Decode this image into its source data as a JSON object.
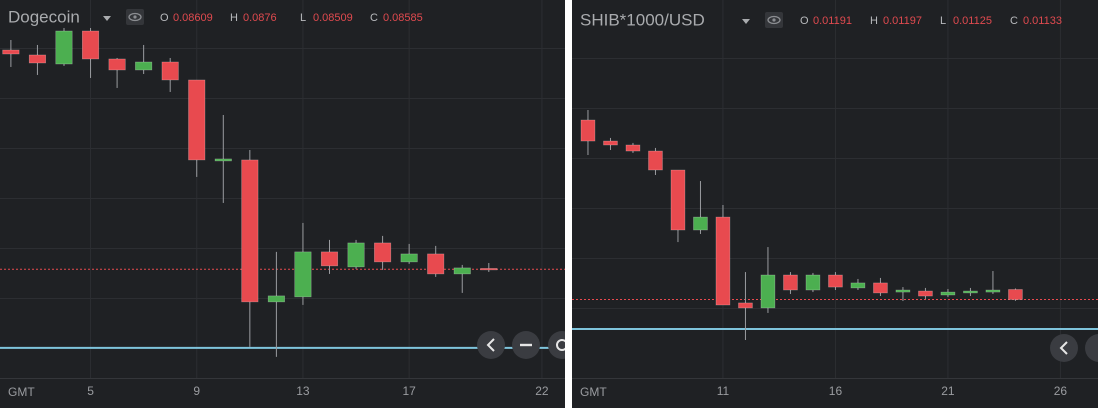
{
  "chart_data": [
    {
      "type": "candlestick",
      "title": "Dogecoin",
      "ohlc_labels": [
        "O",
        "H",
        "L",
        "C"
      ],
      "x_axis_label": "GMT",
      "x": [
        2,
        3,
        4,
        5,
        6,
        7,
        8,
        9,
        10,
        11,
        12,
        13,
        14,
        15,
        16,
        17,
        18,
        19,
        20
      ],
      "open": [
        0.14705,
        0.14566,
        0.14314,
        0.15235,
        0.14454,
        0.14147,
        0.1437,
        0.13868,
        0.11608,
        0.11636,
        0.07674,
        0.07814,
        0.0907,
        0.08651,
        0.0932,
        0.0879,
        0.09013,
        0.08455,
        0.08609
      ],
      "high": [
        0.14984,
        0.14845,
        0.15319,
        0.15319,
        0.14482,
        0.14845,
        0.14482,
        0.13868,
        0.12891,
        0.11915,
        0.0907,
        0.09878,
        0.09404,
        0.09404,
        0.09516,
        0.09292,
        0.09237,
        0.08706,
        0.0876
      ],
      "low": [
        0.14231,
        0.14008,
        0.14259,
        0.13924,
        0.13645,
        0.14035,
        0.13533,
        0.11162,
        0.10436,
        0.06419,
        0.0614,
        0.0759,
        0.08455,
        0.08595,
        0.08567,
        0.08734,
        0.08372,
        0.07925,
        0.08509
      ],
      "close": [
        0.14593,
        0.14342,
        0.15235,
        0.14454,
        0.14147,
        0.1437,
        0.13868,
        0.11636,
        0.11664,
        0.07674,
        0.07842,
        0.0907,
        0.08679,
        0.0932,
        0.0879,
        0.09013,
        0.08455,
        0.08623,
        0.08585
      ],
      "xlim": [
        1.59,
        22.87
      ],
      "xticks": [
        5,
        9,
        13,
        17,
        22
      ],
      "ylim": [
        0.0555,
        0.161
      ],
      "up_color": "#4caf50",
      "down_color": "#e84a4f",
      "reference_line": 0.06391,
      "reference_color": "#7fc4dc",
      "grid": true
    },
    {
      "type": "candlestick",
      "title": "SHIB*1000/USD",
      "ohlc_labels": [
        "O",
        "H",
        "L",
        "C"
      ],
      "x_axis_label": "GMT",
      "x": [
        5,
        6,
        7,
        8,
        9,
        10,
        11,
        12,
        13,
        14,
        15,
        16,
        17,
        18,
        19,
        20,
        21,
        22,
        23,
        24
      ],
      "open": [
        0.02174,
        0.02052,
        0.02029,
        0.01994,
        0.01884,
        0.01536,
        0.01611,
        0.01113,
        0.01084,
        0.01275,
        0.01188,
        0.01275,
        0.012,
        0.01229,
        0.01176,
        0.01182,
        0.01159,
        0.01171,
        0.01176,
        0.01191
      ],
      "high": [
        0.02232,
        0.0207,
        0.02041,
        0.02012,
        0.01884,
        0.0182,
        0.01681,
        0.01292,
        0.01437,
        0.01292,
        0.01287,
        0.01292,
        0.01252,
        0.01258,
        0.01205,
        0.012,
        0.01194,
        0.012,
        0.01298,
        0.01197
      ],
      "low": [
        0.01971,
        0.02,
        0.01983,
        0.01855,
        0.01466,
        0.01513,
        0.01101,
        0.00898,
        0.01055,
        0.01165,
        0.01176,
        0.01188,
        0.01188,
        0.01153,
        0.01124,
        0.01136,
        0.01147,
        0.01153,
        0.01165,
        0.01125
      ],
      "close": [
        0.02052,
        0.02029,
        0.01994,
        0.01884,
        0.01536,
        0.01611,
        0.01101,
        0.01084,
        0.01275,
        0.01188,
        0.01275,
        0.01205,
        0.01229,
        0.01171,
        0.01188,
        0.01153,
        0.01176,
        0.01182,
        0.01188,
        0.01133
      ],
      "xlim": [
        4.29,
        27.67
      ],
      "xticks": [
        11,
        16,
        21,
        26
      ],
      "ylim": [
        0.006776,
        0.0287
      ],
      "up_color": "#4caf50",
      "down_color": "#e84a4f",
      "reference_line": 0.00962,
      "reference_color": "#7fc4dc",
      "grid": true
    }
  ]
}
